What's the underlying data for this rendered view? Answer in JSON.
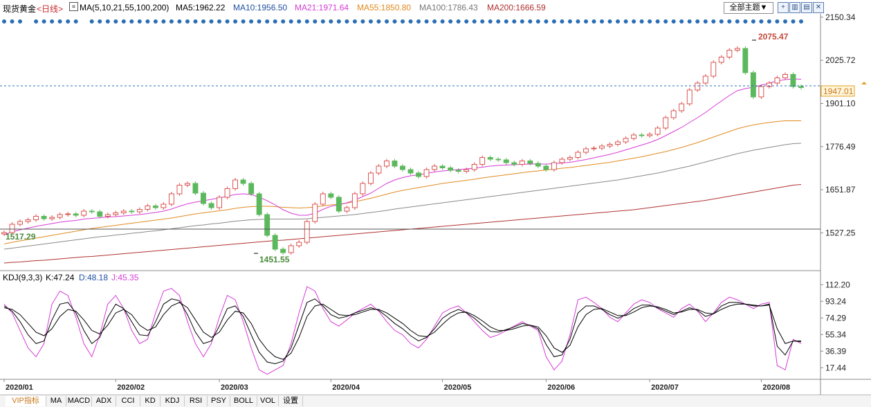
{
  "header": {
    "instrument": "现货黄金",
    "period": "<日线>",
    "ma_params": "MA(5,10,21,55,100,200)",
    "ma5": "MA5:1962.22",
    "ma10": "MA10:1956.50",
    "ma21": "MA21:1971.64",
    "ma55": "MA55:1850.80",
    "ma100": "MA100:1786.43",
    "ma200": "MA200:1666.59",
    "theme_button": "全部主题▼"
  },
  "colors": {
    "up": "#d9534f",
    "down": "#5cb85c",
    "ma5": "#000000",
    "ma10": "#000000",
    "ma21": "#d63bd6",
    "ma55": "#e08a1e",
    "ma100": "#888888",
    "ma200": "#b03030",
    "k_line": "#000000",
    "d_line": "#000000",
    "j_line": "#d63bd6",
    "dots": "#2a6fb5"
  },
  "kdj": {
    "label": "KDJ(9,3,3)",
    "k": "K:47.24",
    "d": "D:48.18",
    "j": "J:45.35"
  },
  "price_axis": [
    "2150.34",
    "2025.72",
    "1901.10",
    "1776.49",
    "1651.87",
    "1527.25"
  ],
  "kdj_axis": [
    "112.20",
    "93.24",
    "74.29",
    "55.34",
    "36.39",
    "17.44"
  ],
  "annotations": {
    "high": "2075.47",
    "low": "1451.55",
    "left": "1517.29",
    "last_price": "1947.01"
  },
  "x_labels": [
    "2020/01",
    "2020/02",
    "2020/03",
    "2020/04",
    "2020/05",
    "2020/06",
    "2020/07",
    "2020/08"
  ],
  "tabs": [
    "VIP指标",
    "MA",
    "MACD",
    "ADX",
    "CCI",
    "KD",
    "KDJ",
    "RSI",
    "PSY",
    "BOLL",
    "VOL",
    "设置"
  ],
  "chart_data": {
    "type": "candlestick",
    "title": "现货黄金 日线",
    "ylim": [
      1420,
      2160
    ],
    "months": [
      "2020/01",
      "2020/02",
      "2020/03",
      "2020/04",
      "2020/05",
      "2020/06",
      "2020/07",
      "2020/08"
    ],
    "close": [
      1528,
      1552,
      1560,
      1565,
      1575,
      1568,
      1572,
      1580,
      1582,
      1578,
      1590,
      1588,
      1575,
      1580,
      1585,
      1590,
      1588,
      1595,
      1605,
      1600,
      1610,
      1640,
      1665,
      1670,
      1642,
      1612,
      1600,
      1630,
      1655,
      1680,
      1670,
      1640,
      1580,
      1520,
      1480,
      1470,
      1490,
      1500,
      1560,
      1610,
      1640,
      1630,
      1590,
      1600,
      1640,
      1670,
      1700,
      1720,
      1735,
      1720,
      1710,
      1700,
      1690,
      1710,
      1720,
      1715,
      1708,
      1705,
      1710,
      1725,
      1745,
      1740,
      1738,
      1730,
      1725,
      1735,
      1728,
      1720,
      1710,
      1730,
      1740,
      1745,
      1760,
      1770,
      1772,
      1778,
      1783,
      1790,
      1800,
      1810,
      1808,
      1812,
      1830,
      1860,
      1880,
      1900,
      1940,
      1960,
      1980,
      2020,
      2035,
      2055,
      2060,
      1990,
      1920,
      1950,
      1960,
      1975,
      1985,
      1950,
      1947
    ],
    "ma21": [
      1522,
      1530,
      1536,
      1541,
      1546,
      1550,
      1554,
      1558,
      1561,
      1563,
      1567,
      1569,
      1571,
      1573,
      1574,
      1576,
      1578,
      1580,
      1583,
      1586,
      1590,
      1596,
      1604,
      1611,
      1616,
      1620,
      1624,
      1628,
      1633,
      1638,
      1640,
      1638,
      1630,
      1620,
      1608,
      1594,
      1584,
      1578,
      1578,
      1584,
      1595,
      1604,
      1608,
      1614,
      1622,
      1632,
      1642,
      1656,
      1670,
      1680,
      1687,
      1692,
      1695,
      1699,
      1703,
      1706,
      1708,
      1710,
      1712,
      1714,
      1717,
      1720,
      1722,
      1723,
      1724,
      1725,
      1726,
      1726,
      1726,
      1727,
      1729,
      1731,
      1735,
      1739,
      1744,
      1749,
      1754,
      1760,
      1767,
      1774,
      1781,
      1788,
      1797,
      1808,
      1820,
      1832,
      1846,
      1860,
      1875,
      1892,
      1908,
      1924,
      1938,
      1944,
      1948,
      1954,
      1960,
      1966,
      1970,
      1972,
      1971
    ],
    "ma55": [
      1495,
      1500,
      1504,
      1508,
      1512,
      1516,
      1520,
      1524,
      1528,
      1532,
      1536,
      1540,
      1543,
      1546,
      1549,
      1552,
      1555,
      1558,
      1561,
      1564,
      1567,
      1570,
      1574,
      1578,
      1582,
      1585,
      1588,
      1591,
      1594,
      1598,
      1601,
      1603,
      1604,
      1604,
      1603,
      1601,
      1600,
      1599,
      1600,
      1602,
      1605,
      1608,
      1610,
      1613,
      1617,
      1622,
      1627,
      1633,
      1639,
      1645,
      1650,
      1654,
      1658,
      1662,
      1666,
      1670,
      1673,
      1676,
      1679,
      1682,
      1686,
      1689,
      1692,
      1695,
      1698,
      1701,
      1704,
      1706,
      1709,
      1711,
      1714,
      1716,
      1719,
      1722,
      1725,
      1728,
      1731,
      1735,
      1739,
      1743,
      1747,
      1752,
      1757,
      1762,
      1768,
      1774,
      1781,
      1788,
      1796,
      1804,
      1812,
      1820,
      1828,
      1834,
      1839,
      1843,
      1846,
      1849,
      1851,
      1851,
      1851
    ],
    "ma100": [
      1480,
      1483,
      1486,
      1489,
      1492,
      1495,
      1498,
      1501,
      1504,
      1507,
      1510,
      1513,
      1516,
      1518,
      1521,
      1523,
      1526,
      1528,
      1531,
      1533,
      1536,
      1539,
      1542,
      1545,
      1548,
      1550,
      1553,
      1555,
      1558,
      1561,
      1563,
      1565,
      1566,
      1567,
      1567,
      1567,
      1567,
      1567,
      1568,
      1570,
      1572,
      1574,
      1576,
      1578,
      1580,
      1583,
      1586,
      1589,
      1592,
      1596,
      1599,
      1602,
      1605,
      1608,
      1611,
      1614,
      1617,
      1620,
      1623,
      1626,
      1629,
      1632,
      1635,
      1638,
      1641,
      1644,
      1647,
      1650,
      1653,
      1656,
      1659,
      1662,
      1665,
      1668,
      1671,
      1674,
      1677,
      1680,
      1684,
      1688,
      1692,
      1696,
      1700,
      1705,
      1710,
      1715,
      1720,
      1726,
      1732,
      1738,
      1744,
      1750,
      1756,
      1761,
      1766,
      1770,
      1774,
      1778,
      1782,
      1785,
      1786
    ],
    "ma200": [
      1440,
      1442,
      1443,
      1445,
      1447,
      1448,
      1450,
      1452,
      1454,
      1456,
      1458,
      1459,
      1461,
      1463,
      1465,
      1467,
      1469,
      1471,
      1473,
      1475,
      1477,
      1479,
      1481,
      1483,
      1485,
      1487,
      1489,
      1491,
      1493,
      1495,
      1497,
      1499,
      1501,
      1503,
      1505,
      1506,
      1508,
      1510,
      1512,
      1514,
      1516,
      1518,
      1520,
      1522,
      1524,
      1526,
      1528,
      1530,
      1532,
      1534,
      1536,
      1538,
      1540,
      1542,
      1544,
      1546,
      1548,
      1550,
      1552,
      1554,
      1556,
      1558,
      1560,
      1562,
      1564,
      1566,
      1568,
      1570,
      1572,
      1574,
      1576,
      1578,
      1580,
      1582,
      1584,
      1586,
      1588,
      1590,
      1592,
      1594,
      1597,
      1600,
      1603,
      1606,
      1609,
      1612,
      1615,
      1618,
      1621,
      1625,
      1629,
      1633,
      1637,
      1641,
      1645,
      1649,
      1653,
      1657,
      1661,
      1665,
      1667
    ],
    "kdj_ylim": [
      5,
      118
    ],
    "j": [
      90,
      80,
      60,
      40,
      30,
      45,
      90,
      105,
      100,
      75,
      45,
      30,
      55,
      90,
      100,
      85,
      60,
      45,
      50,
      80,
      105,
      108,
      100,
      70,
      45,
      30,
      45,
      75,
      100,
      95,
      70,
      40,
      15,
      10,
      15,
      20,
      45,
      80,
      110,
      105,
      85,
      70,
      65,
      72,
      80,
      85,
      90,
      82,
      70,
      60,
      55,
      45,
      40,
      50,
      65,
      80,
      85,
      88,
      80,
      70,
      60,
      52,
      55,
      60,
      65,
      70,
      65,
      60,
      30,
      15,
      25,
      55,
      95,
      98,
      92,
      85,
      75,
      70,
      80,
      90,
      95,
      92,
      85,
      80,
      75,
      85,
      90,
      82,
      70,
      80,
      92,
      98,
      95,
      90,
      85,
      90,
      92,
      20,
      15,
      50,
      45
    ],
    "k": [
      88,
      82,
      70,
      55,
      45,
      48,
      72,
      90,
      92,
      80,
      60,
      45,
      52,
      75,
      90,
      85,
      70,
      55,
      54,
      70,
      90,
      96,
      94,
      78,
      58,
      45,
      48,
      65,
      85,
      88,
      76,
      55,
      35,
      24,
      22,
      25,
      40,
      66,
      92,
      96,
      88,
      78,
      74,
      76,
      80,
      83,
      86,
      83,
      76,
      68,
      62,
      54,
      48,
      52,
      62,
      74,
      80,
      84,
      80,
      74,
      66,
      59,
      58,
      61,
      64,
      68,
      66,
      62,
      44,
      30,
      32,
      50,
      80,
      88,
      88,
      84,
      78,
      74,
      78,
      85,
      89,
      89,
      86,
      82,
      78,
      82,
      86,
      83,
      76,
      79,
      88,
      92,
      92,
      90,
      88,
      88,
      90,
      42,
      32,
      48,
      47
    ],
    "d": [
      86,
      84,
      78,
      68,
      58,
      54,
      62,
      76,
      84,
      82,
      72,
      60,
      56,
      66,
      80,
      84,
      78,
      66,
      60,
      64,
      78,
      88,
      92,
      86,
      72,
      58,
      52,
      58,
      72,
      82,
      80,
      68,
      50,
      38,
      30,
      27,
      34,
      52,
      76,
      88,
      90,
      84,
      78,
      77,
      78,
      81,
      84,
      84,
      80,
      74,
      68,
      60,
      54,
      53,
      58,
      67,
      75,
      80,
      81,
      77,
      71,
      64,
      60,
      60,
      62,
      65,
      66,
      64,
      54,
      40,
      35,
      43,
      64,
      78,
      84,
      85,
      81,
      77,
      77,
      81,
      86,
      88,
      87,
      84,
      80,
      81,
      84,
      84,
      80,
      79,
      84,
      88,
      90,
      90,
      89,
      88,
      89,
      62,
      45,
      48,
      48
    ]
  }
}
